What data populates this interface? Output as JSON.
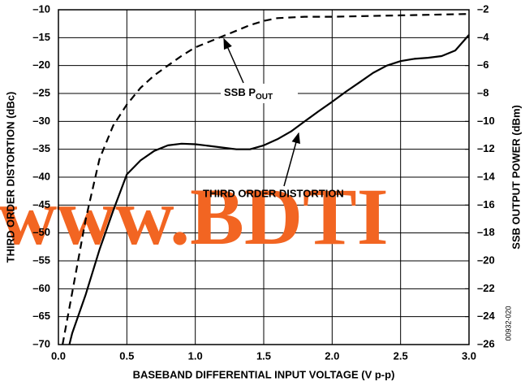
{
  "chart_data": {
    "type": "line",
    "xlabel": "BASEBAND DIFFERENTIAL INPUT VOLTAGE (V p-p)",
    "ylabel": "THIRD ORDER DISTORTION (dBc)",
    "y2label": "SSB OUTPUT POWER (dBm)",
    "figure_id": "00932-020",
    "watermark": "www.BDTI",
    "annotation_distortion": "THIRD ORDER DISTORTION",
    "annotation_pout": "SSB P",
    "annotation_pout_sub": "OUT",
    "xlim": [
      0,
      3
    ],
    "ylim": [
      -70,
      -10
    ],
    "y2lim": [
      -26,
      -2
    ],
    "grid": true,
    "xticks": [
      {
        "value": 0,
        "label": "0.0"
      },
      0.5,
      {
        "value": 1,
        "label": "1.0"
      },
      1.5,
      {
        "value": 2,
        "label": "2.0"
      },
      2.5,
      {
        "value": 3,
        "label": "3.0"
      }
    ],
    "yticks": [
      {
        "value": -10,
        "label": "–10"
      },
      {
        "value": -15,
        "label": "–15"
      },
      {
        "value": -20,
        "label": "–20"
      },
      {
        "value": -25,
        "label": "–25"
      },
      {
        "value": -30,
        "label": "–30"
      },
      {
        "value": -35,
        "label": "–35"
      },
      {
        "value": -40,
        "label": "–40"
      },
      {
        "value": -45,
        "label": "–45"
      },
      {
        "value": -50,
        "label": "–50"
      },
      {
        "value": -55,
        "label": "–55"
      },
      {
        "value": -60,
        "label": "–60"
      },
      {
        "value": -65,
        "label": "–65"
      },
      {
        "value": -70,
        "label": "–70"
      }
    ],
    "y2ticks": [
      {
        "value": -2,
        "label": "–2"
      },
      {
        "value": -4,
        "label": "–4"
      },
      {
        "value": -6,
        "label": "–6"
      },
      {
        "value": -8,
        "label": "–8"
      },
      {
        "value": -10,
        "label": "–10"
      },
      {
        "value": -12,
        "label": "–12"
      },
      {
        "value": -14,
        "label": "–14"
      },
      {
        "value": -16,
        "label": "–16"
      },
      {
        "value": -18,
        "label": "–18"
      },
      {
        "value": -20,
        "label": "–20"
      },
      {
        "value": -22,
        "label": "–22"
      },
      {
        "value": -24,
        "label": "–24"
      },
      {
        "value": -26,
        "label": "–26"
      }
    ],
    "series": [
      {
        "name": "THIRD ORDER DISTORTION",
        "color": "#000000",
        "dash": false,
        "axis": "y",
        "x": [
          0.08,
          0.1,
          0.2,
          0.3,
          0.4,
          0.5,
          0.6,
          0.7,
          0.8,
          0.9,
          1.0,
          1.1,
          1.2,
          1.3,
          1.4,
          1.5,
          1.6,
          1.7,
          1.8,
          1.9,
          2.0,
          2.1,
          2.2,
          2.3,
          2.4,
          2.5,
          2.6,
          2.7,
          2.8,
          2.9,
          3.0
        ],
        "values": [
          -70,
          -68,
          -61,
          -53,
          -46,
          -39.5,
          -37,
          -35.3,
          -34.3,
          -34,
          -34.1,
          -34.4,
          -34.7,
          -35,
          -35,
          -34.3,
          -33.2,
          -31.8,
          -30,
          -28.2,
          -26.5,
          -24.7,
          -23,
          -21.3,
          -20,
          -19.2,
          -18.8,
          -18.6,
          -18.3,
          -17.3,
          -14.5
        ]
      },
      {
        "name": "SSB POUT",
        "color": "#000000",
        "dash": true,
        "axis": "y2",
        "x": [
          0.03,
          0.1,
          0.2,
          0.3,
          0.4,
          0.5,
          0.6,
          0.7,
          0.8,
          0.9,
          1.0,
          1.1,
          1.2,
          1.3,
          1.4,
          1.5,
          1.6,
          1.8,
          2.0,
          2.5,
          3.0
        ],
        "values": [
          -26,
          -22.3,
          -17,
          -12.7,
          -10.3,
          -8.8,
          -7.6,
          -6.7,
          -6,
          -5.3,
          -4.7,
          -4.3,
          -3.9,
          -3.5,
          -3.1,
          -2.8,
          -2.6,
          -2.5,
          -2.5,
          -2.4,
          -2.3
        ]
      }
    ]
  }
}
